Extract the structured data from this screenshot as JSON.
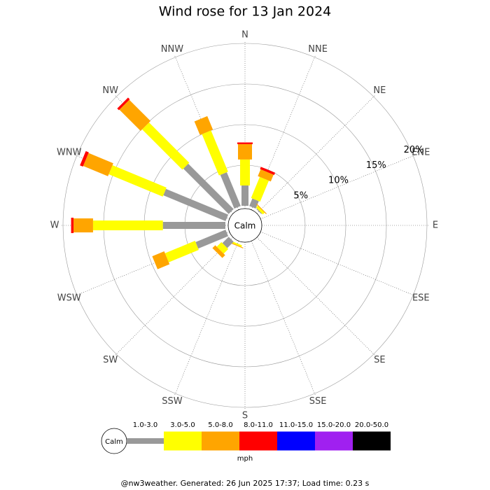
{
  "chart_data": {
    "type": "windrose",
    "title": "Wind rose for 13 Jan 2024",
    "categories": [
      "N",
      "NNE",
      "NE",
      "ENE",
      "E",
      "ESE",
      "SE",
      "SSE",
      "S",
      "SSW",
      "SW",
      "WSW",
      "W",
      "WNW",
      "NW",
      "NNW"
    ],
    "series": [
      {
        "name": "1.0-3.0",
        "color": "#999999",
        "values": [
          2.5,
          1.0,
          0.1,
          0,
          0,
          0,
          0,
          0,
          0,
          0,
          1.1,
          4.0,
          7.7,
          8.3,
          7.9,
          4.5
        ]
      },
      {
        "name": "3.0-5.0",
        "color": "#ffff00",
        "values": [
          3.2,
          2.8,
          0.3,
          0,
          0,
          0,
          0,
          0,
          0,
          0.2,
          0.8,
          4.0,
          8.6,
          7.2,
          7.0,
          5.5
        ]
      },
      {
        "name": "5.0-8.0",
        "color": "#ffa500",
        "values": [
          1.9,
          0.9,
          0.1,
          0,
          0,
          0,
          0,
          0,
          0,
          0.1,
          0.5,
          1.6,
          2.4,
          3.3,
          3.7,
          1.8
        ]
      },
      {
        "name": "8.0-11.0",
        "color": "#ff0000",
        "values": [
          0.2,
          0.3,
          0,
          0,
          0,
          0,
          0,
          0,
          0,
          0,
          0,
          0,
          0.3,
          0.4,
          0.3,
          0
        ]
      },
      {
        "name": "11.0-15.0",
        "color": "#0000ff",
        "values": [
          0,
          0,
          0,
          0,
          0,
          0,
          0,
          0,
          0,
          0,
          0,
          0,
          0,
          0,
          0,
          0
        ]
      },
      {
        "name": "15.0-20.0",
        "color": "#a020f0",
        "values": [
          0,
          0,
          0,
          0,
          0,
          0,
          0,
          0,
          0,
          0,
          0,
          0,
          0,
          0,
          0,
          0
        ]
      },
      {
        "name": "20.0-50.0",
        "color": "#000000",
        "values": [
          0,
          0,
          0,
          0,
          0,
          0,
          0,
          0,
          0,
          0,
          0,
          0,
          0,
          0,
          0,
          0
        ]
      }
    ],
    "rlim": [
      0,
      20
    ],
    "rticks": [
      {
        "value": 5,
        "label": "5%"
      },
      {
        "value": 10,
        "label": "10%"
      },
      {
        "value": 15,
        "label": "15%"
      },
      {
        "value": 20,
        "label": "20%"
      }
    ],
    "calm_label": "Calm",
    "units": "mph",
    "footer": "@nw3weather. Generated: 26 Jun 2025 17:37; Load time: 0.23 s"
  }
}
